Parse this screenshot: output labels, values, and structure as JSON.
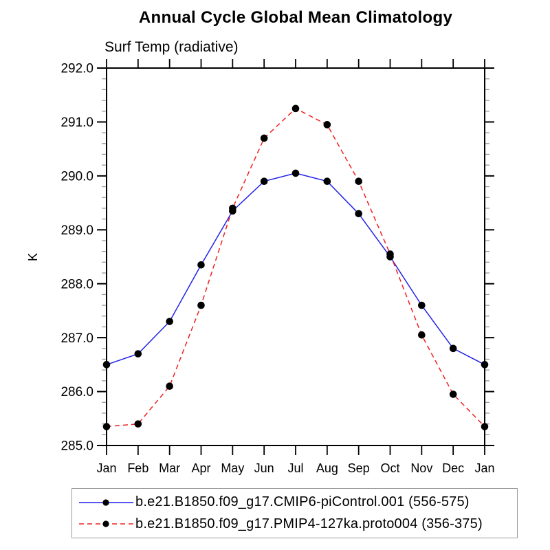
{
  "chart_data": {
    "type": "line",
    "title": "Annual Cycle Global Mean Climatology",
    "subtitle": "Surf Temp (radiative)",
    "ylabel": "K",
    "x_categories": [
      "Jan",
      "Feb",
      "Mar",
      "Apr",
      "May",
      "Jun",
      "Jul",
      "Aug",
      "Sep",
      "Oct",
      "Nov",
      "Dec",
      "Jan"
    ],
    "ylim": [
      285.0,
      292.0
    ],
    "y_major_ticks": [
      285.0,
      286.0,
      287.0,
      288.0,
      289.0,
      290.0,
      291.0,
      292.0
    ],
    "y_minor_step": 0.2,
    "grid": false,
    "legend_position": "bottom",
    "marker": "filled-circle",
    "marker_color": "#000000",
    "series": [
      {
        "name": "b.e21.B1850.f09_g17.CMIP6-piControl.001 (556-575)",
        "color": "#1f1fe8",
        "line_style": "solid",
        "values": [
          286.5,
          286.7,
          287.3,
          288.35,
          289.35,
          289.9,
          290.05,
          289.9,
          289.3,
          288.5,
          287.6,
          286.8,
          286.5
        ]
      },
      {
        "name": "b.e21.B1850.f09_g17.PMIP4-127ka.proto004 (356-375)",
        "color": "#f02020",
        "line_style": "dashed",
        "values": [
          285.35,
          285.4,
          286.1,
          287.6,
          289.4,
          290.7,
          291.25,
          290.95,
          289.9,
          288.55,
          287.05,
          285.95,
          285.35
        ]
      }
    ]
  },
  "style_colors": {
    "axis": "#000000",
    "minor_tick": "#999999",
    "legend_border": "#9a9a9a"
  }
}
